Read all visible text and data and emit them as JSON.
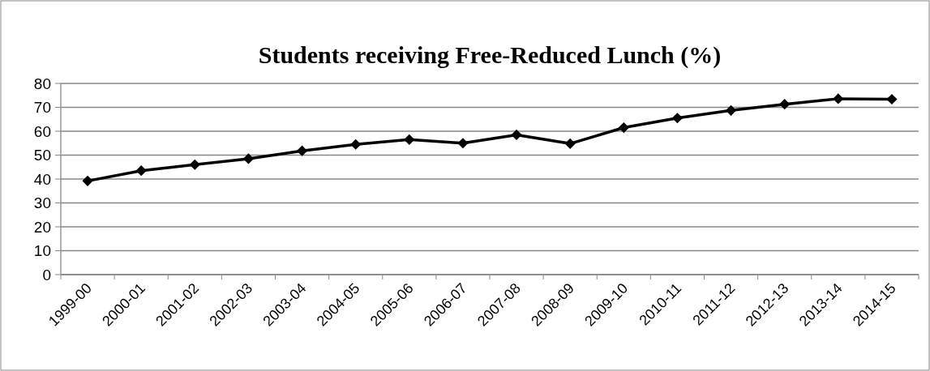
{
  "chart_data": {
    "type": "line",
    "title": "Students receiving Free-Reduced Lunch (%)",
    "categories": [
      "1999-00",
      "2000-01",
      "2001-02",
      "2002-03",
      "2003-04",
      "2004-05",
      "2005-06",
      "2006-07",
      "2007-08",
      "2008-09",
      "2009-10",
      "2010-11",
      "2011-12",
      "2012-13",
      "2013-14",
      "2014-15"
    ],
    "series": [
      {
        "color": "#000000",
        "values": [
          39.2,
          43.5,
          46,
          48.5,
          51.8,
          54.5,
          56.5,
          55,
          58.5,
          54.8,
          61.5,
          65.5,
          68.7,
          71.3,
          73.6,
          73.4
        ]
      }
    ],
    "ylim": [
      0,
      80
    ],
    "yticks": [
      0,
      10,
      20,
      30,
      40,
      50,
      60,
      70,
      80
    ],
    "grid": "y",
    "marker": "diamond",
    "line_style": "solid"
  }
}
